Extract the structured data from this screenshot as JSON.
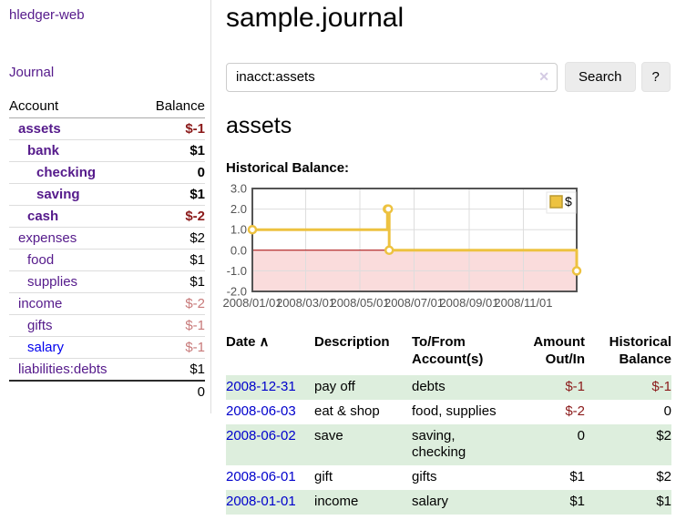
{
  "app": {
    "brand": "hledger-web"
  },
  "sidebar": {
    "nav": {
      "journal": "Journal"
    },
    "accounts_table": {
      "headers": {
        "account": "Account",
        "balance": "Balance"
      },
      "rows": [
        {
          "name": "assets",
          "indent": 1,
          "bold": true,
          "link_color": "purple",
          "balance": "$-1",
          "balance_style": "neg-strong"
        },
        {
          "name": "bank",
          "indent": 2,
          "bold": true,
          "link_color": "purple",
          "balance": "$1",
          "balance_style": "strong"
        },
        {
          "name": "checking",
          "indent": 3,
          "bold": true,
          "link_color": "purple",
          "balance": "0",
          "balance_style": "strong"
        },
        {
          "name": "saving",
          "indent": 3,
          "bold": true,
          "link_color": "purple",
          "balance": "$1",
          "balance_style": "strong"
        },
        {
          "name": "cash",
          "indent": 2,
          "bold": true,
          "link_color": "purple",
          "balance": "$-2",
          "balance_style": "neg-strong"
        },
        {
          "name": "expenses",
          "indent": 1,
          "bold": false,
          "link_color": "purple",
          "balance": "$2",
          "balance_style": "pos"
        },
        {
          "name": "food",
          "indent": 2,
          "bold": false,
          "link_color": "purple",
          "balance": "$1",
          "balance_style": "pos"
        },
        {
          "name": "supplies",
          "indent": 2,
          "bold": false,
          "link_color": "purple",
          "balance": "$1",
          "balance_style": "pos"
        },
        {
          "name": "income",
          "indent": 1,
          "bold": false,
          "link_color": "purple",
          "balance": "$-2",
          "balance_style": "neg-light"
        },
        {
          "name": "gifts",
          "indent": 2,
          "bold": false,
          "link_color": "purple",
          "balance": "$-1",
          "balance_style": "neg-light"
        },
        {
          "name": "salary",
          "indent": 2,
          "bold": false,
          "link_color": "blue",
          "balance": "$-1",
          "balance_style": "neg-light"
        },
        {
          "name": "liabilities:debts",
          "indent": 1,
          "bold": false,
          "link_color": "purple",
          "balance": "$1",
          "balance_style": "pos"
        }
      ],
      "total": "0"
    }
  },
  "main": {
    "title": "sample.journal",
    "search": {
      "value": "inacct:assets",
      "clear_icon": "✕",
      "search_button": "Search",
      "help_button": "?"
    },
    "account_heading": "assets",
    "chart_heading": "Historical Balance:"
  },
  "chart_data": {
    "type": "line",
    "step": true,
    "title": "Historical Balance:",
    "legend": {
      "label": "$",
      "position": "top-right"
    },
    "series": [
      {
        "name": "$",
        "points": [
          [
            "2008-01-01",
            1
          ],
          [
            "2008-06-01",
            2
          ],
          [
            "2008-06-02",
            2
          ],
          [
            "2008-06-03",
            0
          ],
          [
            "2008-12-31",
            -1
          ]
        ]
      }
    ],
    "x_range": [
      "2008-01-01",
      "2008-12-31"
    ],
    "x_ticks": [
      "2008/01/01",
      "2008/03/01",
      "2008/05/01",
      "2008/07/01",
      "2008/09/01",
      "2008/11/01"
    ],
    "y_ticks": [
      "3.0",
      "2.0",
      "1.0",
      "0.0",
      "-1.0",
      "-2.0"
    ],
    "ylim": [
      -2,
      3
    ],
    "grid": true,
    "colors": {
      "line": "#edc240",
      "point_fill": "#ffffff",
      "negative_region": "#fadcdc",
      "zero_line": "#aa0000",
      "gridline": "#dddddd",
      "border": "#545454",
      "tick_text": "#545454"
    }
  },
  "register": {
    "headers": {
      "date": "Date",
      "sort_indicator": "∧",
      "description": "Description",
      "account_line1": "To/From",
      "account_line2": "Account(s)",
      "amount_line1": "Amount",
      "amount_line2": "Out/In",
      "balance_line1": "Historical",
      "balance_line2": "Balance"
    },
    "rows": [
      {
        "date": "2008-12-31",
        "description": "pay off",
        "accounts": "debts",
        "amount": "$-1",
        "amount_negative": true,
        "balance": "$-1",
        "balance_negative": true
      },
      {
        "date": "2008-06-03",
        "description": "eat & shop",
        "accounts": "food, supplies",
        "amount": "$-2",
        "amount_negative": true,
        "balance": "0",
        "balance_negative": false
      },
      {
        "date": "2008-06-02",
        "description": "save",
        "accounts": "saving, checking",
        "amount": "0",
        "amount_negative": false,
        "balance": "$2",
        "balance_negative": false
      },
      {
        "date": "2008-06-01",
        "description": "gift",
        "accounts": "gifts",
        "amount": "$1",
        "amount_negative": false,
        "balance": "$2",
        "balance_negative": false
      },
      {
        "date": "2008-01-01",
        "description": "income",
        "accounts": "salary",
        "amount": "$1",
        "amount_negative": false,
        "balance": "$1",
        "balance_negative": false
      }
    ]
  },
  "colors": {
    "link_purple": "#551a8b",
    "link_blue": "#0000ee",
    "table_date_link": "#0000cc",
    "negative_strong": "#8b1a1a",
    "negative_light": "#c87a7a",
    "row_stripe_green": "#ddeedd",
    "sidebar_divider": "#dddddd"
  }
}
